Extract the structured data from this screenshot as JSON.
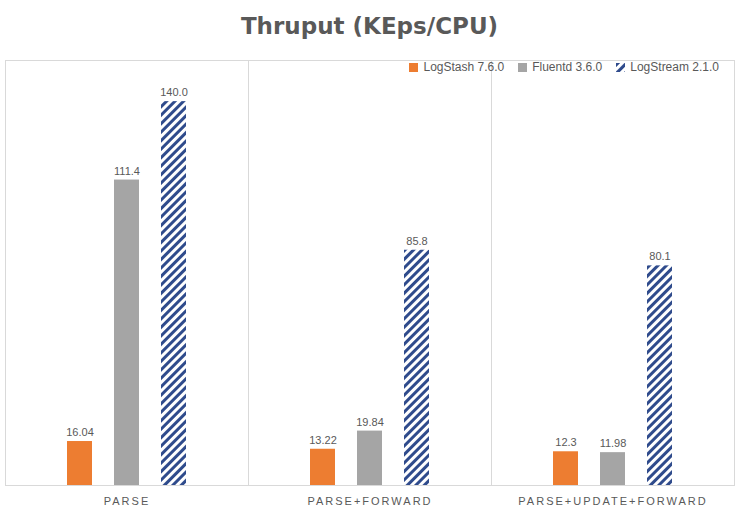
{
  "chart_data": {
    "type": "bar",
    "title": "Thruput (KEps/CPU)",
    "categories": [
      "PARSE",
      "PARSE+FORWARD",
      "PARSE+UPDATE+FORWARD"
    ],
    "series": [
      {
        "name": "LogStash 7.6.0",
        "color": "#ed7d31",
        "values": [
          16.04,
          13.22,
          12.3
        ]
      },
      {
        "name": "Fluentd 3.6.0",
        "color": "#a5a5a5",
        "values": [
          111.4,
          19.84,
          11.98
        ]
      },
      {
        "name": "LogStream 2.1.0",
        "color": "#2f4b8c",
        "values": [
          140.0,
          85.8,
          80.1
        ],
        "value_labels": [
          "140.0",
          "85.8",
          "80.1"
        ]
      }
    ],
    "ylim": [
      0,
      155
    ],
    "grid": false,
    "legend": "top-right",
    "data_labels": true,
    "tick_labels": "x"
  }
}
